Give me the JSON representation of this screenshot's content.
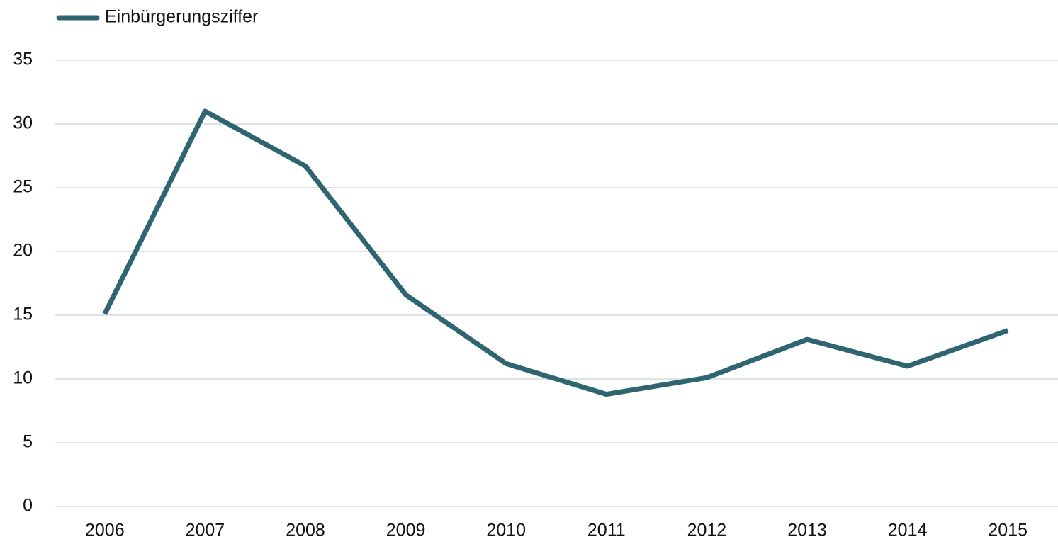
{
  "chart_data": {
    "type": "line",
    "categories": [
      "2006",
      "2007",
      "2008",
      "2009",
      "2010",
      "2011",
      "2012",
      "2013",
      "2014",
      "2015"
    ],
    "series": [
      {
        "name": "Einbürgerungsziffer",
        "color": "#2e6570",
        "values": [
          15.1,
          31.0,
          26.7,
          16.6,
          11.2,
          8.8,
          10.1,
          13.1,
          11.0,
          13.8
        ]
      }
    ],
    "ylim": [
      0,
      35
    ],
    "yticks": [
      0,
      5,
      10,
      15,
      20,
      25,
      30,
      35
    ],
    "grid": true,
    "legend": "top-left"
  }
}
